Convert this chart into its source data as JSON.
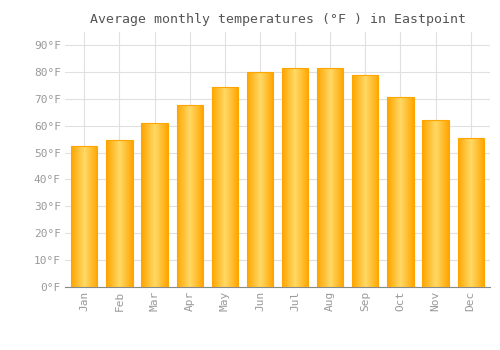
{
  "title": "Average monthly temperatures (°F ) in Eastpoint",
  "months": [
    "Jan",
    "Feb",
    "Mar",
    "Apr",
    "May",
    "Jun",
    "Jul",
    "Aug",
    "Sep",
    "Oct",
    "Nov",
    "Dec"
  ],
  "values": [
    52.5,
    54.5,
    61.0,
    67.5,
    74.5,
    80.0,
    81.5,
    81.5,
    79.0,
    70.5,
    62.0,
    55.5
  ],
  "bar_color_main": "#FFA500",
  "bar_color_light": "#FFD966",
  "background_color": "#FFFFFF",
  "grid_color": "#E0E0E0",
  "text_color": "#999999",
  "title_color": "#555555",
  "ylim": [
    0,
    95
  ],
  "yticks": [
    0,
    10,
    20,
    30,
    40,
    50,
    60,
    70,
    80,
    90
  ],
  "ytick_labels": [
    "0°F",
    "10°F",
    "20°F",
    "30°F",
    "40°F",
    "50°F",
    "60°F",
    "70°F",
    "80°F",
    "90°F"
  ]
}
